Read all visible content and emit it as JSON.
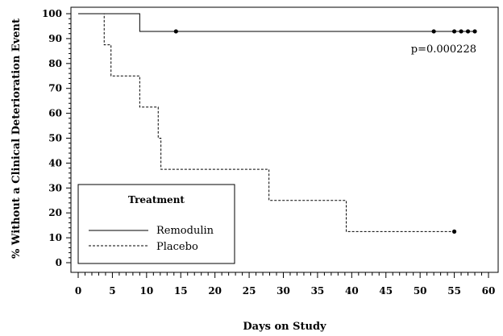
{
  "chart_data": {
    "type": "line",
    "title": "",
    "xlabel": "Days on Study",
    "ylabel": "% Without a Clinical Deterioration Event",
    "xlim": [
      0,
      60
    ],
    "ylim": [
      0,
      100
    ],
    "x_ticks": [
      0,
      5,
      10,
      15,
      20,
      25,
      30,
      35,
      40,
      45,
      50,
      55,
      60
    ],
    "y_ticks": [
      0,
      10,
      20,
      30,
      40,
      50,
      60,
      70,
      80,
      90,
      100
    ],
    "x_tick_labels": [
      "0",
      "5",
      "10",
      "15",
      "20",
      "25",
      "30",
      "35",
      "40",
      "45",
      "50",
      "55",
      "60"
    ],
    "y_tick_labels": [
      "0",
      "10",
      "20",
      "30",
      "40",
      "50",
      "60",
      "70",
      "80",
      "90",
      "100"
    ],
    "grid": false,
    "step": true,
    "legend": {
      "title": "Treatment",
      "placement": "bottom-left",
      "entries": [
        "Remodulin",
        "Placebo"
      ]
    },
    "annotation": "p=0.000228",
    "series": [
      {
        "name": "Remodulin",
        "style": "solid",
        "x": [
          0,
          9,
          14.3,
          52,
          55,
          56,
          57,
          58
        ],
        "y": [
          100,
          92.9,
          92.9,
          92.9,
          92.9,
          92.9,
          92.9,
          92.9
        ],
        "censored_x": [
          14.3,
          52,
          55,
          56,
          57,
          58
        ]
      },
      {
        "name": "Placebo",
        "style": "dashed",
        "x": [
          0,
          3.8,
          4.8,
          9,
          11.7,
          12.1,
          27.9,
          39.2,
          55
        ],
        "y": [
          100,
          87.5,
          75,
          62.5,
          50,
          37.5,
          25,
          12.5,
          12.5
        ],
        "censored_x": [
          55
        ]
      }
    ]
  }
}
